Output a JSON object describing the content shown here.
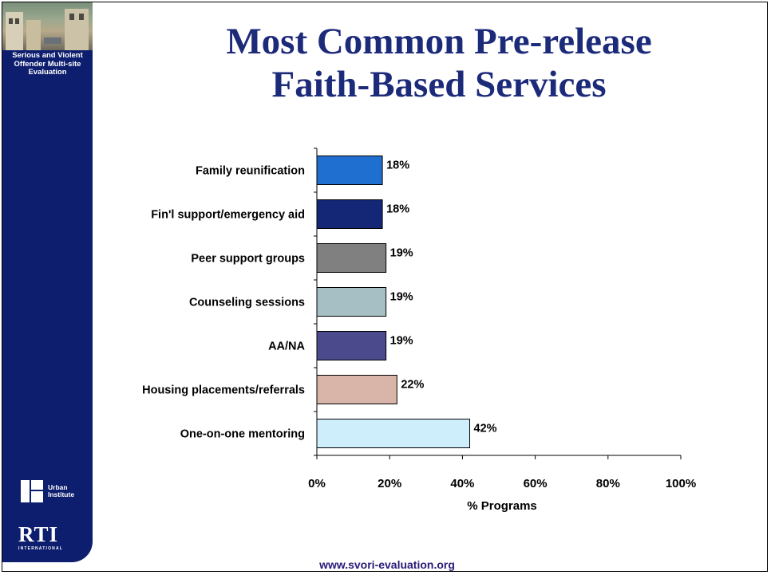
{
  "sidebar": {
    "project_name": "Serious and Violent Offender Multi-site Evaluation",
    "urban_logo_text": "Urban Institute",
    "rti_logo_text": "RTI",
    "rti_logo_subtext": "INTERNATIONAL"
  },
  "title_line1": "Most Common Pre-release",
  "title_line2": "Faith-Based Services",
  "footer_url": "www.svori-evaluation.org",
  "chart_data": {
    "type": "bar",
    "orientation": "horizontal",
    "categories": [
      "Family reunification",
      "Fin'l support/emergency aid",
      "Peer support groups",
      "Counseling sessions",
      "AA/NA",
      "Housing placements/referrals",
      "One-on-one mentoring"
    ],
    "values": [
      18,
      18,
      19,
      19,
      19,
      22,
      42
    ],
    "data_labels": [
      "18%",
      "18%",
      "19%",
      "19%",
      "19%",
      "22%",
      "42%"
    ],
    "bar_colors": [
      "#1f6fd0",
      "#142777",
      "#808080",
      "#a6bfc4",
      "#4a4a8c",
      "#d8b5a8",
      "#cfeefc"
    ],
    "xlabel": "% Programs",
    "xlim": [
      0,
      100
    ],
    "xticks": [
      "0%",
      "20%",
      "40%",
      "60%",
      "80%",
      "100%"
    ],
    "grid": false,
    "legend": "none"
  }
}
